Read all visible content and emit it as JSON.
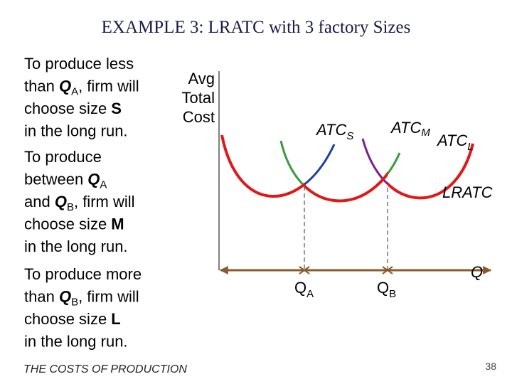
{
  "title": "EXAMPLE 3:  LRATC with 3 factory Sizes",
  "paragraphs": [
    {
      "lines": [
        [
          "To produce less"
        ],
        [
          "than ",
          "Q",
          "A",
          ", firm will"
        ],
        [
          "choose size ",
          "S"
        ],
        [
          "in the long run."
        ]
      ]
    },
    {
      "lines": [
        [
          "To produce"
        ],
        [
          "between ",
          "Q",
          "A"
        ],
        [
          "and ",
          "Q",
          "B",
          ", firm will"
        ],
        [
          "choose size ",
          "M"
        ],
        [
          "in the long run."
        ]
      ]
    },
    {
      "lines": [
        [
          "To produce more"
        ],
        [
          "than ",
          "Q",
          "B",
          ", firm will"
        ],
        [
          "choose size ",
          "L"
        ],
        [
          "in the long run."
        ]
      ]
    }
  ],
  "diagram": {
    "y_axis_label": [
      "Avg",
      "Total",
      "Cost"
    ],
    "x_axis_label": "Q",
    "curves": [
      [
        "ATC",
        "S"
      ],
      [
        "ATC",
        "M"
      ],
      [
        "ATC",
        "L"
      ]
    ],
    "envelope_label": "LRATC",
    "quantities": [
      [
        "Q",
        "A"
      ],
      [
        "Q",
        "B"
      ]
    ]
  },
  "footer": {
    "text": "THE COSTS OF PRODUCTION",
    "page": "38"
  }
}
